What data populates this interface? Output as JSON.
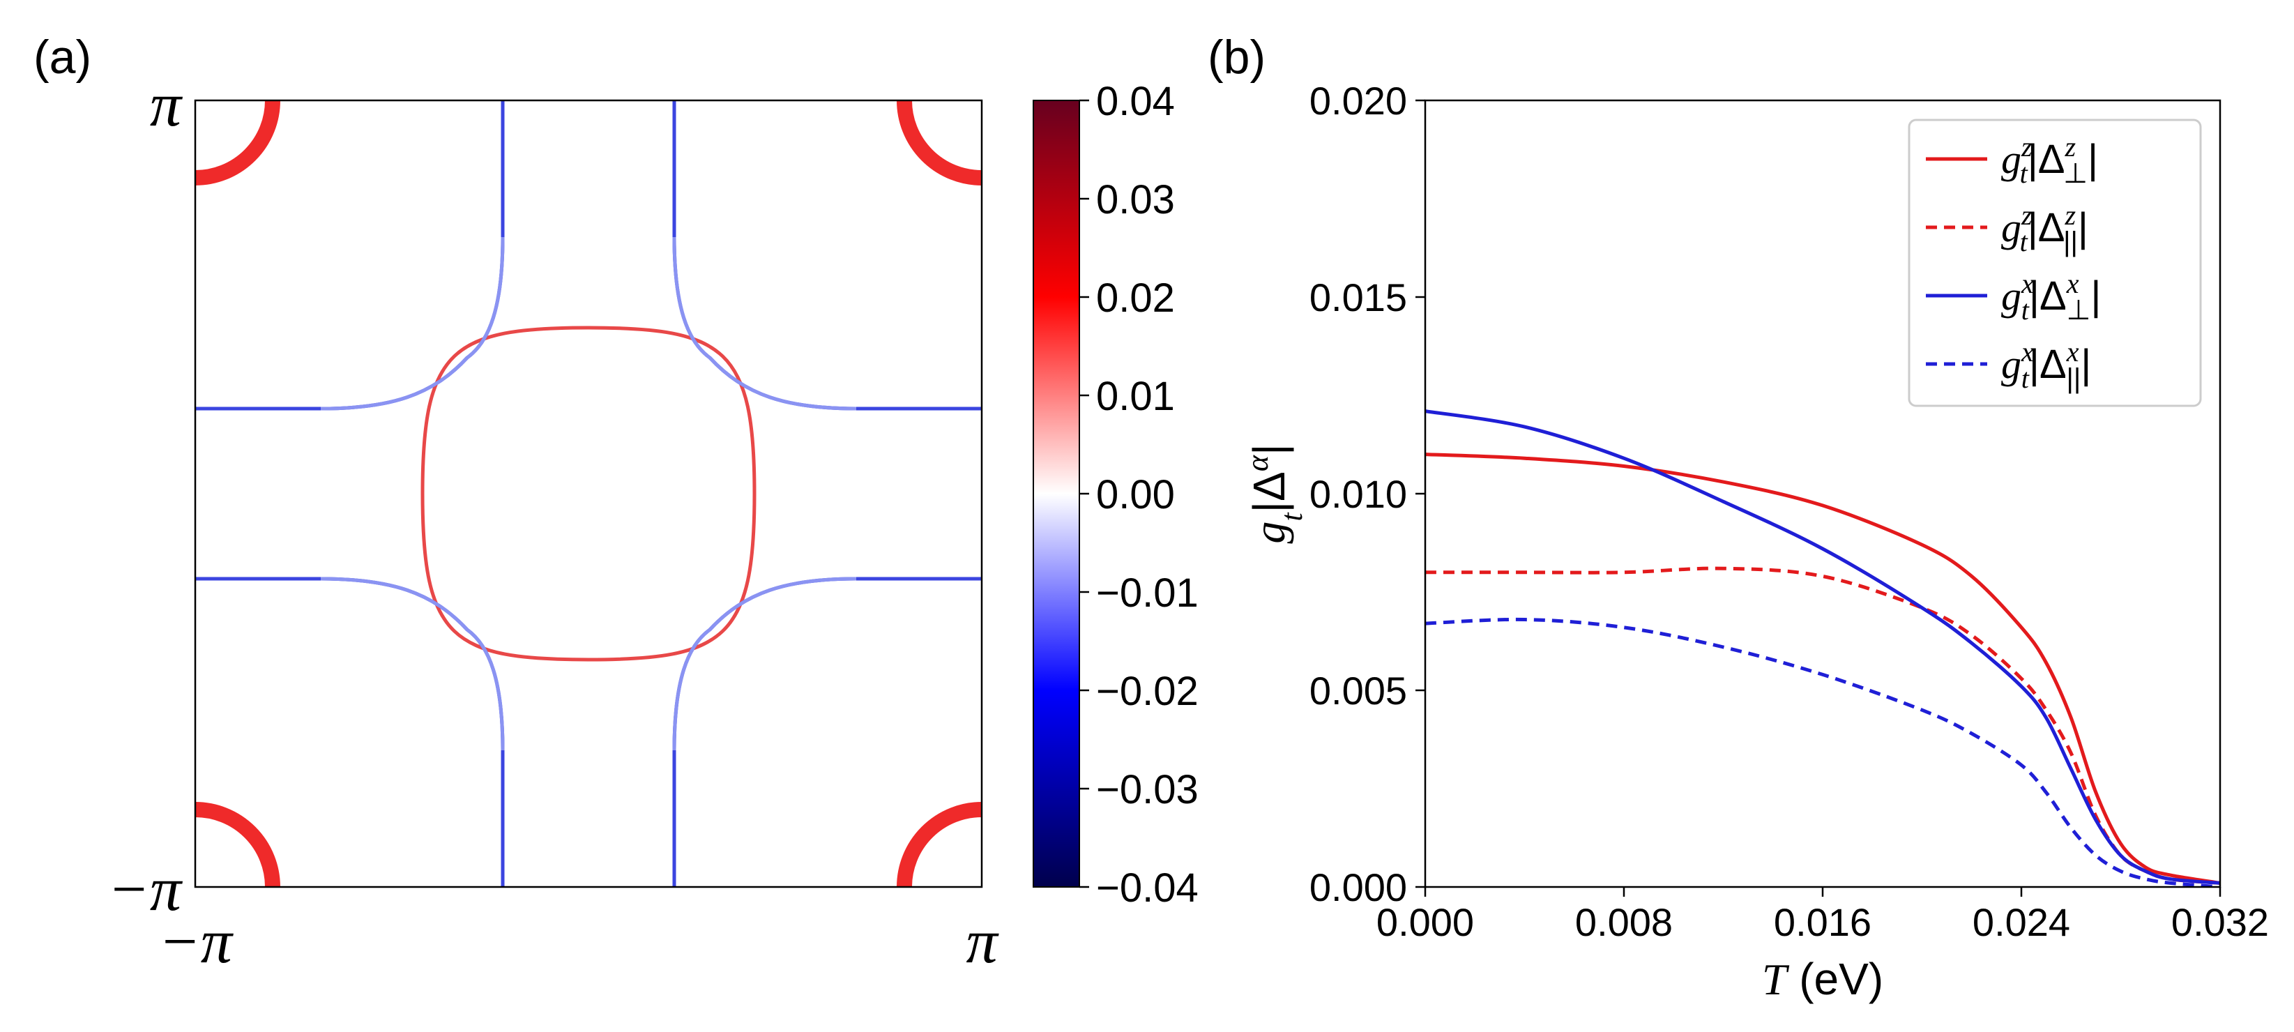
{
  "panel_a": {
    "label": "(a)",
    "axis": {
      "x_min": "−π",
      "x_max": "π",
      "y_min": "−π",
      "y_max": "π"
    },
    "colorbar": {
      "range": [
        -0.04,
        0.04
      ],
      "ticks": [
        "0.04",
        "0.03",
        "0.02",
        "0.01",
        "0.00",
        "−0.01",
        "−0.02",
        "−0.03",
        "−0.04"
      ],
      "colors": {
        "max": "#67001f",
        "high": "#ff0000",
        "mid": "#ffffff",
        "low": "#0000ff",
        "min": "#00004c"
      }
    }
  },
  "panel_b": {
    "label": "(b)",
    "legend": [
      {
        "label": "g_t^z|Δ_⊥^z|",
        "color": "#e31a1c",
        "style": "solid"
      },
      {
        "label": "g_t^z|Δ_||^z|",
        "color": "#e31a1c",
        "style": "dashed"
      },
      {
        "label": "g_t^x|Δ_⊥^x|",
        "color": "#1f1fd6",
        "style": "solid"
      },
      {
        "label": "g_t^x|Δ_||^x|",
        "color": "#1f1fd6",
        "style": "dashed"
      }
    ]
  },
  "chart_data": [
    {
      "type": "heatmap",
      "title": "(a)",
      "description": "Fermi surface in the Brillouin zone colored by gap value",
      "xlabel": "",
      "ylabel": "",
      "xlim": [
        "−π",
        "π"
      ],
      "ylim": [
        "−π",
        "π"
      ],
      "colorbar_range": [
        -0.04,
        0.04
      ],
      "features": [
        {
          "name": "central-pocket",
          "kind": "rounded square around (0,0)",
          "gap": 0.016
        },
        {
          "name": "corner-pockets",
          "kind": "quarter circles at (±π,±π)",
          "gap": 0.02
        },
        {
          "name": "outer-surfaces",
          "kind": "four hyperbolic sheets",
          "gap_min": -0.014,
          "gap_max": -0.025
        }
      ]
    },
    {
      "type": "line",
      "title": "(b)",
      "xlabel": "T (eV)",
      "ylabel": "g_t|Δ^α|",
      "xlim": [
        0.0,
        0.032
      ],
      "ylim": [
        0.0,
        0.02
      ],
      "xticks": [
        "0.000",
        "0.008",
        "0.016",
        "0.024",
        "0.032"
      ],
      "yticks": [
        "0.000",
        "0.005",
        "0.010",
        "0.015",
        "0.020"
      ],
      "x": [
        0,
        0.004,
        0.008,
        0.012,
        0.016,
        0.02,
        0.022,
        0.024,
        0.025,
        0.026,
        0.027,
        0.028,
        0.029,
        0.03,
        0.032
      ],
      "series": [
        {
          "name": "g_t^z|Δ_⊥^z|",
          "values": [
            0.011,
            0.0109,
            0.0107,
            0.0103,
            0.0097,
            0.0087,
            0.0079,
            0.0066,
            0.0057,
            0.0043,
            0.0024,
            0.0011,
            0.0005,
            0.0003,
            0.0001
          ]
        },
        {
          "name": "g_t^z|Δ_||^z|",
          "values": [
            0.008,
            0.008,
            0.008,
            0.0081,
            0.0079,
            0.0071,
            0.0064,
            0.0053,
            0.0045,
            0.0034,
            0.0018,
            0.0008,
            0.0004,
            0.0002,
            0.0001
          ]
        },
        {
          "name": "g_t^x|Δ_⊥^x|",
          "values": [
            0.0121,
            0.0117,
            0.0109,
            0.0098,
            0.0086,
            0.0071,
            0.0062,
            0.0051,
            0.0043,
            0.003,
            0.0017,
            0.0008,
            0.0004,
            0.0002,
            0.0001
          ]
        },
        {
          "name": "g_t^x|Δ_||^x|",
          "values": [
            0.0067,
            0.0068,
            0.0066,
            0.0061,
            0.0054,
            0.0045,
            0.0039,
            0.0031,
            0.0024,
            0.0015,
            0.0008,
            0.0004,
            0.0002,
            0.0001,
            0.0
          ]
        }
      ]
    }
  ]
}
